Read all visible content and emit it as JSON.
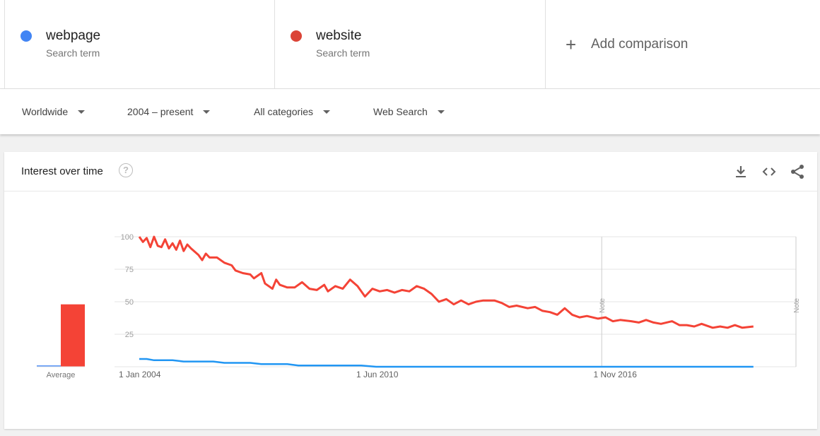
{
  "terms": [
    {
      "name": "webpage",
      "sub": "Search term",
      "color": "#4285f4"
    },
    {
      "name": "website",
      "sub": "Search term",
      "color": "#db4437"
    }
  ],
  "add_comparison": {
    "label": "Add comparison"
  },
  "filters": {
    "region": "Worldwide",
    "time": "2004 – present",
    "category": "All categories",
    "search_type": "Web Search"
  },
  "card": {
    "title": "Interest over time",
    "help_glyph": "?"
  },
  "icons": [
    "download-icon",
    "embed-code-icon",
    "share-icon",
    "help-icon",
    "add-icon",
    "caret-down-icon"
  ],
  "chart_data": {
    "type": "line",
    "title": "Interest over time",
    "y_ticks": [
      "100",
      "75",
      "50",
      "25"
    ],
    "ylim": [
      0,
      100
    ],
    "x_ticks": [
      {
        "label": "1 Jan 2004",
        "year": 2004.0
      },
      {
        "label": "1 Jun 2010",
        "year": 2010.42
      },
      {
        "label": "1 Nov 2016",
        "year": 2016.83
      }
    ],
    "xlim": [
      2004.0,
      2020.6
    ],
    "notes": [
      {
        "label": "Note",
        "year": 2016.5
      },
      {
        "label": "Note",
        "year": 2021.75
      }
    ],
    "note_year_end": 2021.75,
    "average_label": "Average",
    "averages": [
      {
        "name": "webpage",
        "value": 1,
        "color": "#4285f4"
      },
      {
        "name": "website",
        "value": 48,
        "color": "#f44336"
      }
    ],
    "series": [
      {
        "name": "website",
        "color": "#f44336",
        "points": [
          [
            2004.0,
            100
          ],
          [
            2004.1,
            96
          ],
          [
            2004.2,
            99
          ],
          [
            2004.3,
            92
          ],
          [
            2004.4,
            100
          ],
          [
            2004.5,
            93
          ],
          [
            2004.6,
            92
          ],
          [
            2004.7,
            98
          ],
          [
            2004.8,
            91
          ],
          [
            2004.9,
            95
          ],
          [
            2005.0,
            90
          ],
          [
            2005.1,
            97
          ],
          [
            2005.2,
            89
          ],
          [
            2005.3,
            94
          ],
          [
            2005.4,
            91
          ],
          [
            2005.6,
            86
          ],
          [
            2005.7,
            82
          ],
          [
            2005.8,
            87
          ],
          [
            2005.9,
            84
          ],
          [
            2006.1,
            84
          ],
          [
            2006.3,
            80
          ],
          [
            2006.5,
            78
          ],
          [
            2006.6,
            74
          ],
          [
            2006.8,
            72
          ],
          [
            2007.0,
            71
          ],
          [
            2007.1,
            68
          ],
          [
            2007.3,
            72
          ],
          [
            2007.4,
            64
          ],
          [
            2007.6,
            60
          ],
          [
            2007.7,
            67
          ],
          [
            2007.8,
            63
          ],
          [
            2008.0,
            61
          ],
          [
            2008.2,
            61
          ],
          [
            2008.4,
            65
          ],
          [
            2008.6,
            60
          ],
          [
            2008.8,
            59
          ],
          [
            2009.0,
            63
          ],
          [
            2009.1,
            58
          ],
          [
            2009.3,
            62
          ],
          [
            2009.5,
            60
          ],
          [
            2009.7,
            67
          ],
          [
            2009.9,
            62
          ],
          [
            2010.1,
            54
          ],
          [
            2010.3,
            60
          ],
          [
            2010.5,
            58
          ],
          [
            2010.7,
            59
          ],
          [
            2010.9,
            57
          ],
          [
            2011.1,
            59
          ],
          [
            2011.3,
            58
          ],
          [
            2011.5,
            62
          ],
          [
            2011.7,
            60
          ],
          [
            2011.9,
            56
          ],
          [
            2012.1,
            50
          ],
          [
            2012.3,
            52
          ],
          [
            2012.5,
            48
          ],
          [
            2012.7,
            51
          ],
          [
            2012.9,
            48
          ],
          [
            2013.1,
            50
          ],
          [
            2013.3,
            51
          ],
          [
            2013.6,
            51
          ],
          [
            2013.8,
            49
          ],
          [
            2014.0,
            46
          ],
          [
            2014.2,
            47
          ],
          [
            2014.5,
            45
          ],
          [
            2014.7,
            46
          ],
          [
            2014.9,
            43
          ],
          [
            2015.1,
            42
          ],
          [
            2015.3,
            40
          ],
          [
            2015.5,
            45
          ],
          [
            2015.7,
            40
          ],
          [
            2015.9,
            38
          ],
          [
            2016.1,
            39
          ],
          [
            2016.4,
            37
          ],
          [
            2016.6,
            38
          ],
          [
            2016.8,
            35
          ],
          [
            2017.0,
            36
          ],
          [
            2017.3,
            35
          ],
          [
            2017.5,
            34
          ],
          [
            2017.7,
            36
          ],
          [
            2017.9,
            34
          ],
          [
            2018.1,
            33
          ],
          [
            2018.4,
            35
          ],
          [
            2018.6,
            32
          ],
          [
            2018.8,
            32
          ],
          [
            2019.0,
            31
          ],
          [
            2019.2,
            33
          ],
          [
            2019.5,
            30
          ],
          [
            2019.7,
            31
          ],
          [
            2019.9,
            30
          ],
          [
            2020.1,
            32
          ],
          [
            2020.3,
            30
          ],
          [
            2020.6,
            31
          ]
        ]
      },
      {
        "name": "webpage",
        "color": "#2196f3",
        "points": [
          [
            2004.0,
            6
          ],
          [
            2004.2,
            6
          ],
          [
            2004.4,
            5
          ],
          [
            2004.9,
            5
          ],
          [
            2005.2,
            4
          ],
          [
            2006.0,
            4
          ],
          [
            2006.3,
            3
          ],
          [
            2007.0,
            3
          ],
          [
            2007.3,
            2
          ],
          [
            2008.0,
            2
          ],
          [
            2008.3,
            1
          ],
          [
            2010.0,
            1
          ],
          [
            2010.4,
            0
          ],
          [
            2013.0,
            0
          ],
          [
            2016.0,
            0
          ],
          [
            2020.6,
            0
          ]
        ]
      }
    ]
  }
}
